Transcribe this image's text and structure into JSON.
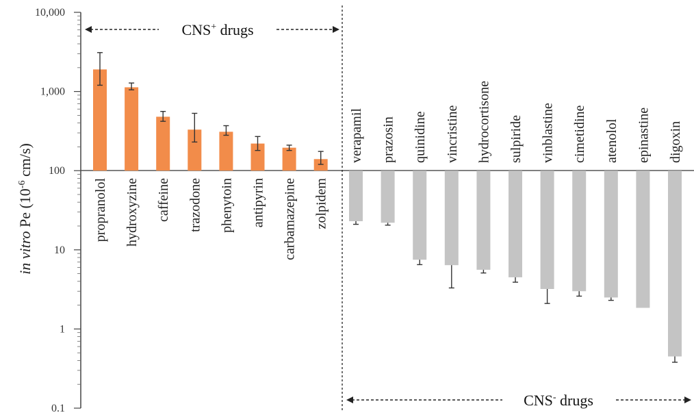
{
  "chart_data": {
    "type": "bar",
    "yscale": "log",
    "ylim": [
      0.1,
      10000
    ],
    "baseline": 100,
    "ylabel": {
      "italic": "in vitro",
      "rest": " Pe (10",
      "sup": "-6",
      "unit": " cm/s)"
    },
    "yticks": [
      {
        "value": 0.1,
        "label": "0.1"
      },
      {
        "value": 1,
        "label": "1"
      },
      {
        "value": 10,
        "label": "10"
      },
      {
        "value": 100,
        "label": "100"
      },
      {
        "value": 1000,
        "label": "1,000"
      },
      {
        "value": 10000,
        "label": "10,000"
      }
    ],
    "groups": [
      {
        "label_main": "CNS",
        "label_sup": "+",
        "label_rest": " drugs",
        "color": "#f28c4a"
      },
      {
        "label_main": "CNS",
        "label_sup": "-",
        "label_rest": " drugs",
        "color": "#c4c4c4"
      }
    ],
    "series": [
      {
        "category": "propranolol",
        "value": 1900,
        "err_low": 1200,
        "err_high": 3100,
        "group": 0
      },
      {
        "category": "hydroxyzine",
        "value": 1130,
        "err_low": 1050,
        "err_high": 1280,
        "group": 0
      },
      {
        "category": "caffeine",
        "value": 480,
        "err_low": 420,
        "err_high": 560,
        "group": 0
      },
      {
        "category": "trazodone",
        "value": 330,
        "err_low": 230,
        "err_high": 530,
        "group": 0
      },
      {
        "category": "phenytoin",
        "value": 310,
        "err_low": 280,
        "err_high": 370,
        "group": 0
      },
      {
        "category": "antipyrin",
        "value": 220,
        "err_low": 180,
        "err_high": 270,
        "group": 0
      },
      {
        "category": "carbamazepine",
        "value": 195,
        "err_low": 180,
        "err_high": 210,
        "group": 0
      },
      {
        "category": "zolpidem",
        "value": 140,
        "err_low": 120,
        "err_high": 175,
        "group": 0
      },
      {
        "category": "verapamil",
        "value": 23,
        "err_low": 21,
        "err_high": 23,
        "group": 1
      },
      {
        "category": "prazosin",
        "value": 22,
        "err_low": 20.5,
        "err_high": 22,
        "group": 1
      },
      {
        "category": "quinidine",
        "value": 7.5,
        "err_low": 6.5,
        "err_high": 7.5,
        "group": 1
      },
      {
        "category": "vincristine",
        "value": 6.4,
        "err_low": 3.3,
        "err_high": 6.4,
        "group": 1
      },
      {
        "category": "hydrocortisone",
        "value": 5.6,
        "err_low": 5.1,
        "err_high": 5.6,
        "group": 1
      },
      {
        "category": "sulpiride",
        "value": 4.5,
        "err_low": 3.9,
        "err_high": 4.5,
        "group": 1
      },
      {
        "category": "vinblastine",
        "value": 3.2,
        "err_low": 2.1,
        "err_high": 3.2,
        "group": 1
      },
      {
        "category": "cimetidine",
        "value": 3.0,
        "err_low": 2.6,
        "err_high": 3.0,
        "group": 1
      },
      {
        "category": "atenolol",
        "value": 2.5,
        "err_low": 2.3,
        "err_high": 2.5,
        "group": 1
      },
      {
        "category": "epinastine",
        "value": 1.85,
        "err_low": 1.85,
        "err_high": 1.85,
        "group": 1
      },
      {
        "category": "digoxin",
        "value": 0.45,
        "err_low": 0.38,
        "err_high": 0.45,
        "group": 1
      }
    ],
    "error_bar_color": "#333333"
  }
}
